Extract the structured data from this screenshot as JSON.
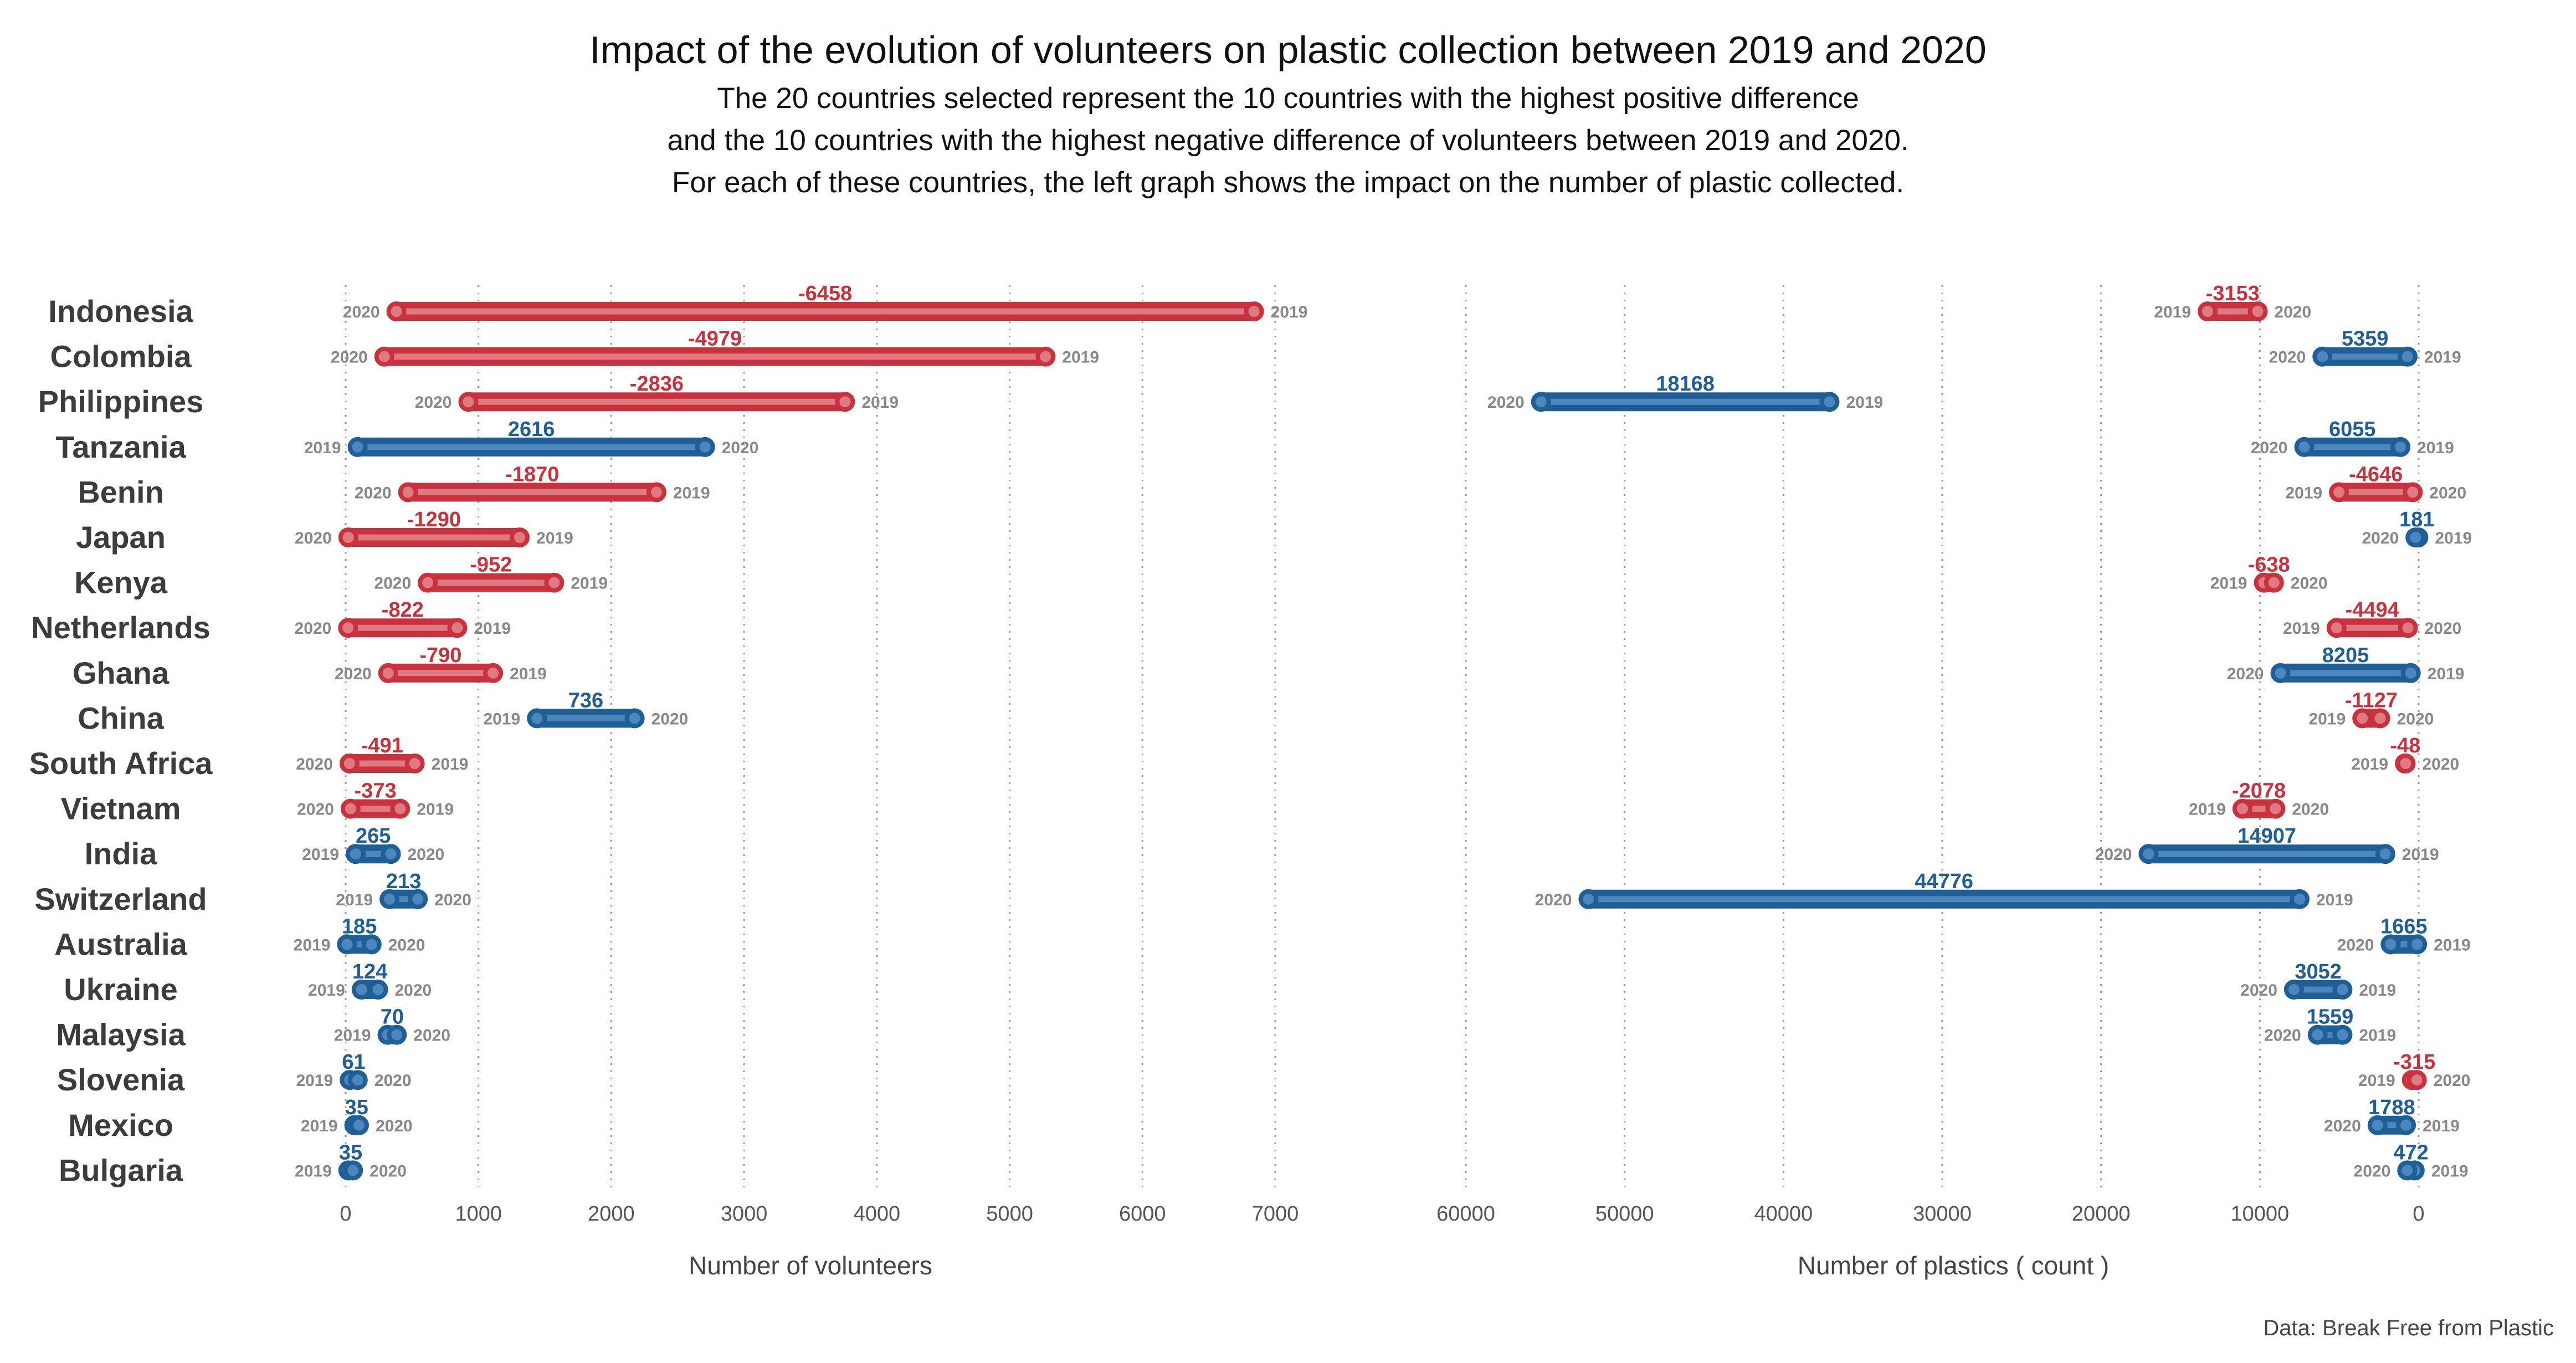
{
  "title": "Impact of the evolution of volunteers on plastic collection between 2019 and 2020",
  "subtitle": [
    "The 20 countries selected represent the 10 countries with the highest positive difference",
    "and the 10 countries with the highest negative difference of volunteers between 2019 and 2020.",
    "For each of these countries, the left graph shows the impact on the number of plastic collected."
  ],
  "source": "Data: Break Free from Plastic",
  "colors": {
    "increase": "#1f5f96",
    "increase_light": "#4b86bd",
    "decrease": "#c8323c",
    "decrease_light": "#e07a82"
  },
  "chart_data": [
    {
      "type": "dumbbell",
      "xlabel": "Number of volunteers",
      "xlim": [
        0,
        7000
      ],
      "xticks": [
        0,
        1000,
        2000,
        3000,
        4000,
        5000,
        6000,
        7000
      ],
      "grid": "vertical dotted",
      "categories": [
        "Indonesia",
        "Colombia",
        "Philippines",
        "Tanzania",
        "Benin",
        "Japan",
        "Kenya",
        "Netherlands",
        "Ghana",
        "China",
        "South Africa",
        "Vietnam",
        "India",
        "Switzerland",
        "Australia",
        "Ukraine",
        "Malaysia",
        "Slovenia",
        "Mexico",
        "Bulgaria"
      ],
      "series": [
        {
          "name": "2019",
          "values": [
            6840,
            5270,
            3760,
            90,
            2340,
            1310,
            1570,
            840,
            1110,
            1440,
            520,
            410,
            75,
            330,
            10,
            120,
            315,
            30,
            65,
            20
          ]
        },
        {
          "name": "2020",
          "values": [
            382,
            291,
            924,
            2706,
            470,
            20,
            618,
            18,
            320,
            2176,
            29,
            37,
            340,
            543,
            195,
            244,
            385,
            91,
            100,
            55
          ]
        }
      ],
      "labels": [
        "-6458",
        "-4979",
        "-2836",
        "2616",
        "-1870",
        "-1290",
        "-952",
        "-822",
        "-790",
        "736",
        "-491",
        "-373",
        "265",
        "213",
        "185",
        "124",
        "70",
        "61",
        "35",
        "35"
      ]
    },
    {
      "type": "dumbbell",
      "xlabel": "Number of plastics ( count )",
      "xlim": [
        60000,
        0
      ],
      "xticks": [
        60000,
        50000,
        40000,
        30000,
        20000,
        10000,
        0
      ],
      "grid": "vertical dotted",
      "categories": [
        "Indonesia",
        "Colombia",
        "Philippines",
        "Tanzania",
        "Benin",
        "Japan",
        "Kenya",
        "Netherlands",
        "Ghana",
        "China",
        "South Africa",
        "Vietnam",
        "India",
        "Switzerland",
        "Australia",
        "Ukraine",
        "Malaysia",
        "Slovenia",
        "Mexico",
        "Bulgaria"
      ],
      "series": [
        {
          "name": "2019",
          "values": [
            13290,
            700,
            37100,
            1150,
            5020,
            20,
            9750,
            5170,
            500,
            3550,
            870,
            11100,
            2100,
            7500,
            100,
            4800,
            4800,
            430,
            800,
            250
          ]
        },
        {
          "name": "2020",
          "values": [
            10137,
            6059,
            55268,
            7205,
            374,
            201,
            9112,
            676,
            8705,
            2423,
            822,
            9022,
            17007,
            52276,
            1765,
            7852,
            6359,
            115,
            2588,
            722
          ]
        }
      ],
      "labels": [
        "-3153",
        "5359",
        "18168",
        "6055",
        "-4646",
        "181",
        "-638",
        "-4494",
        "8205",
        "-1127",
        "-48",
        "-2078",
        "14907",
        "44776",
        "1665",
        "3052",
        "1559",
        "-315",
        "1788",
        "472"
      ]
    }
  ]
}
